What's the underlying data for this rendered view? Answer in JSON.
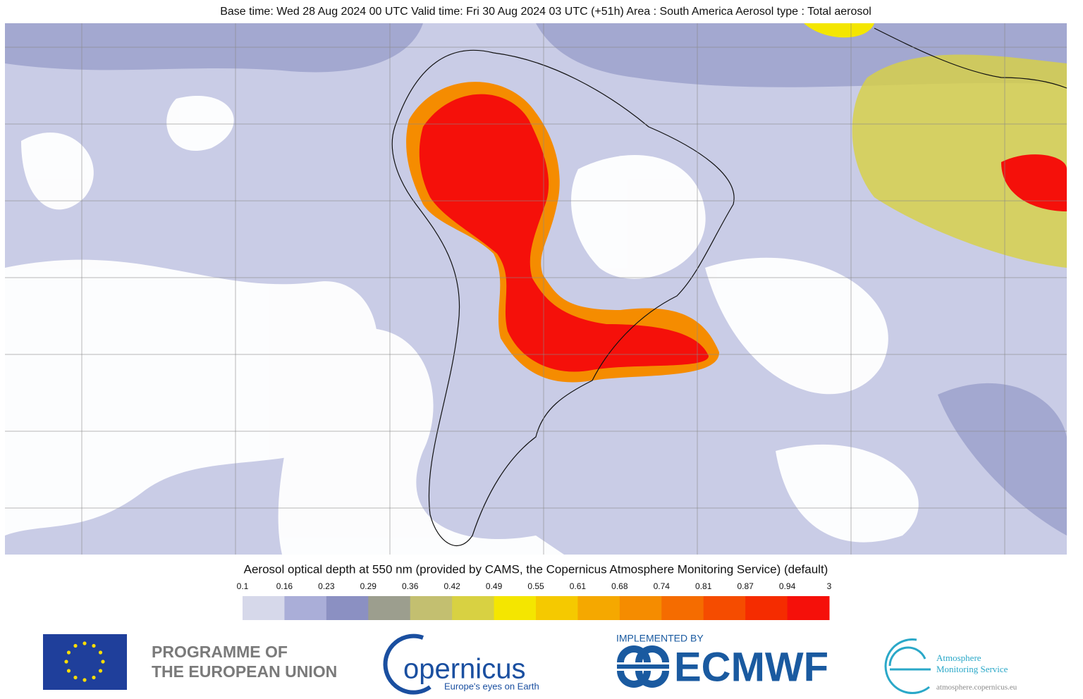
{
  "header": {
    "title": "Base time: Wed 28 Aug 2024 00 UTC Valid time: Fri 30 Aug 2024 03 UTC (+51h) Area : South America Aerosol type : Total aerosol"
  },
  "colorbar": {
    "title": "Aerosol optical depth at 550 nm (provided by CAMS, the Copernicus Atmosphere Monitoring Service) (default)",
    "ticks": [
      0.1,
      0.16,
      0.23,
      0.29,
      0.36,
      0.42,
      0.49,
      0.55,
      0.61,
      0.68,
      0.74,
      0.81,
      0.87,
      0.94,
      3
    ],
    "colors": [
      "#d6d8ea",
      "#aaaed8",
      "#8b90c2",
      "#9c9e8e",
      "#c3bf70",
      "#d8d142",
      "#f4e600",
      "#f5c900",
      "#f5a800",
      "#f58c00",
      "#f56c00",
      "#f54c00",
      "#f52c00",
      "#f5100a"
    ]
  },
  "logos": {
    "eu_line1": "PROGRAMME OF",
    "eu_line2": "THE EUROPEAN UNION",
    "copernicus": "opernicus",
    "copernicus_tagline": "Europe's eyes on Earth",
    "implemented_by": "IMPLEMENTED BY",
    "ecmwf": "ECMWF",
    "ams_line1": "Atmosphere",
    "ams_line2": "Monitoring Service",
    "ams_url": "atmosphere.copernicus.eu"
  }
}
